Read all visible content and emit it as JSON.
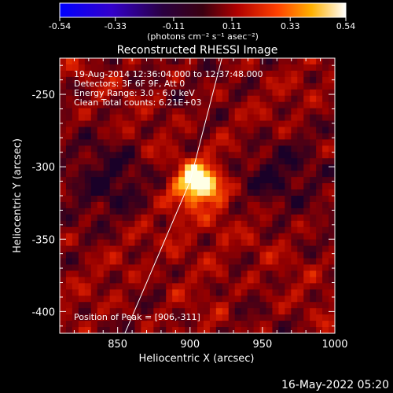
{
  "chart_data": {
    "type": "heatmap",
    "title": "Reconstructed RHESSI Image",
    "colorbar": {
      "ticks": [
        "-0.54",
        "-0.33",
        "-0.11",
        "0.11",
        "0.33",
        "0.54"
      ],
      "range": [
        -0.54,
        0.54
      ],
      "units_label": "(photons cm⁻² s⁻¹ asec⁻²)",
      "colormap": "black-purple-red-orange-yellow-white"
    },
    "xaxis": {
      "label": "Heliocentric X (arcsec)",
      "range": [
        810,
        1000
      ],
      "ticks": [
        "850",
        "900",
        "950",
        "1000"
      ]
    },
    "yaxis": {
      "label": "Heliocentric Y (arcsec)",
      "range": [
        -415,
        -225
      ],
      "ticks": [
        "-250",
        "-300",
        "-350",
        "-400"
      ]
    },
    "annotations": {
      "time": "19-Aug-2014 12:36:04.000 to 12:37:48.000",
      "detectors": "Detectors: 3F 6F 9F, Att 0",
      "energy": "Energy Range: 3.0 - 6.0 keV",
      "clean": "Clean    Total counts: 6.21E+03",
      "peak": "Position of Peak = [906,-311]"
    },
    "peak": {
      "x": 906,
      "y": -311
    },
    "limb_line": {
      "points": [
        [
          855,
          -415
        ],
        [
          900,
          -310
        ],
        [
          922,
          -225
        ]
      ]
    }
  },
  "footer": {
    "date": "16-May-2022 05:20"
  }
}
